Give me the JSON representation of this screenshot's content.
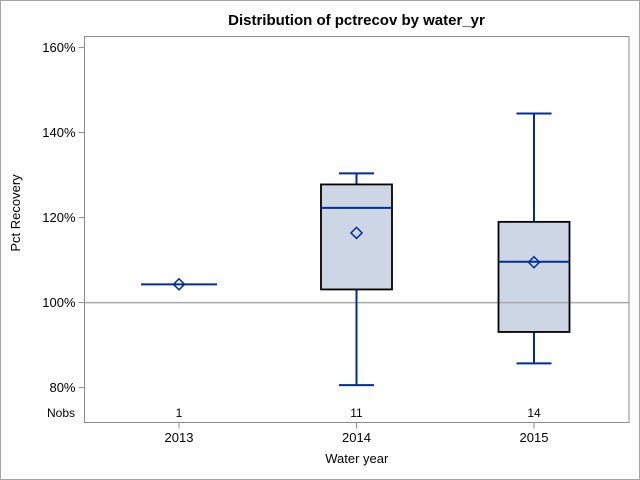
{
  "chart_data": {
    "type": "box",
    "title": "Distribution of pctrecov by water_yr",
    "xlabel": "Water year",
    "ylabel": "Pct Recovery",
    "categories": [
      "2013",
      "2014",
      "2015"
    ],
    "y_ticks": [
      {
        "value": 160,
        "label": "160%"
      },
      {
        "value": 140,
        "label": "140%"
      },
      {
        "value": 120,
        "label": "120%"
      },
      {
        "value": 100,
        "label": "100%"
      },
      {
        "value": 80,
        "label": "80%"
      }
    ],
    "ylim": [
      71.8,
      162.6
    ],
    "reference_line": 100,
    "grid": false,
    "legend": "none",
    "nobs_label": "Nobs",
    "nobs": [
      "1",
      "11",
      "14"
    ],
    "series": [
      {
        "category": "2013",
        "n": 1,
        "min": 104.3,
        "q1": 104.3,
        "median": 104.3,
        "q3": 104.3,
        "max": 104.3,
        "mean": 104.3
      },
      {
        "category": "2014",
        "n": 11,
        "min": 80.6,
        "q1": 103.1,
        "median": 122.3,
        "q3": 127.8,
        "max": 130.4,
        "mean": 116.4
      },
      {
        "category": "2015",
        "n": 14,
        "min": 85.7,
        "q1": 93.1,
        "median": 109.6,
        "q3": 119.0,
        "max": 144.5,
        "mean": 109.5
      }
    ],
    "colors": {
      "box_fill": "#ccd6e4",
      "box_stroke": "#000000",
      "whisker": "#002d9b",
      "median": "#002d9b",
      "mean_marker": "#002d9b",
      "reference_line": "#a9a9a9",
      "frame": "#8b8b8b",
      "text": "#000000"
    }
  }
}
